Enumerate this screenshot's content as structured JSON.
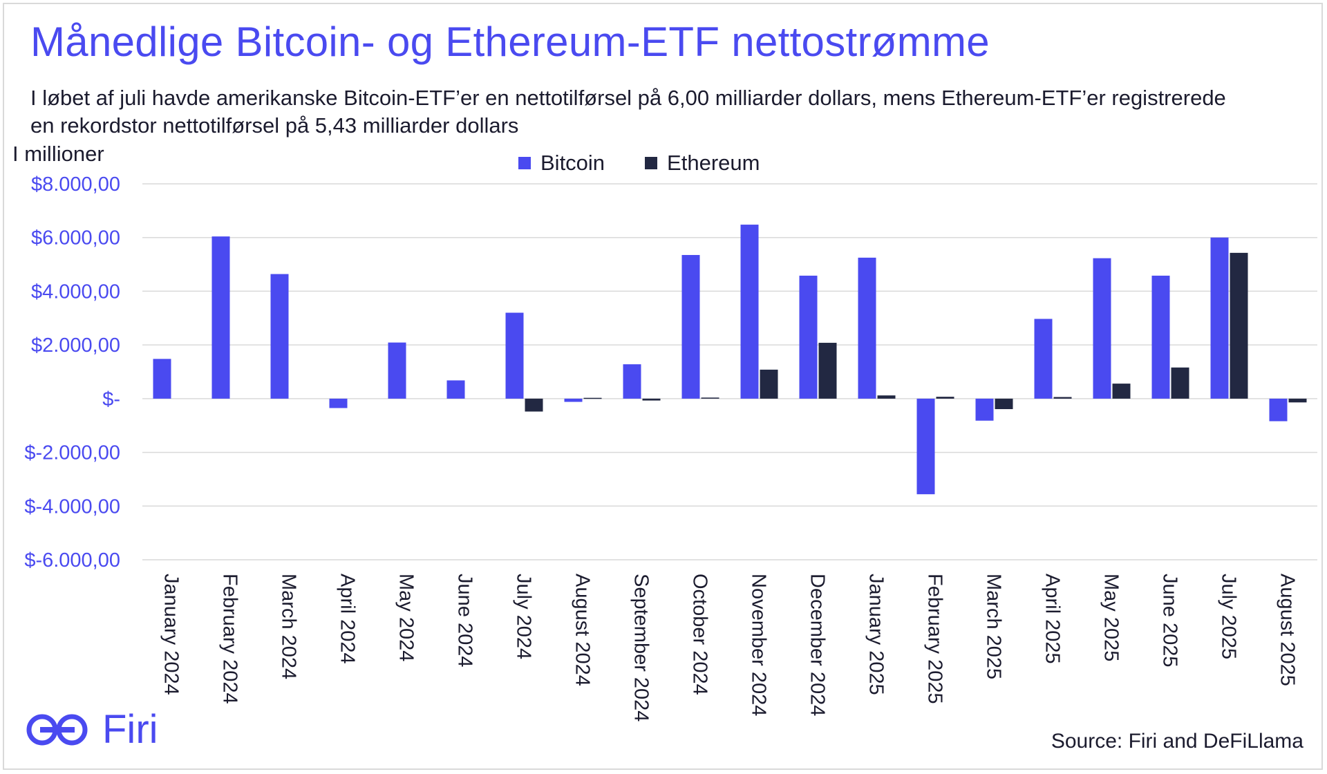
{
  "title": "Månedlige Bitcoin- og Ethereum-ETF nettostrømme",
  "subtitle": "I løbet af juli havde amerikanske Bitcoin-ETF’er en nettotilførsel på 6,00 milliarder dollars, mens Ethereum-ETF’er registrerede en rekordstor nettotilførsel på 5,43 milliarder dollars",
  "unit_label": "I millioner",
  "source": "Source: Firi and DeFiLlama",
  "logo_text": "Firi",
  "colors": {
    "bitcoin": "#4a4af0",
    "ethereum": "#222842",
    "axis_label": "#4a4af0",
    "grid": "#d9d9d9"
  },
  "chart_data": {
    "type": "bar",
    "ylim": [
      -6000,
      8000
    ],
    "yticks": [
      8000,
      6000,
      4000,
      2000,
      0,
      -2000,
      -4000,
      -6000
    ],
    "ytick_labels": [
      "$8.000,00",
      "$6.000,00",
      "$4.000,00",
      "$2.000,00",
      "$-",
      "$-2.000,00",
      "$-4.000,00",
      "$-6.000,00"
    ],
    "grid": true,
    "legend_position": "top-center",
    "categories": [
      "January 2024",
      "February 2024",
      "March 2024",
      "April 2024",
      "May 2024",
      "June 2024",
      "July 2024",
      "August 2024",
      "September 2024",
      "October 2024",
      "November 2024",
      "December 2024",
      "January 2025",
      "February 2025",
      "March 2025",
      "April 2025",
      "May 2025",
      "June 2025",
      "July 2025",
      "August 2025"
    ],
    "series": [
      {
        "name": "Bitcoin",
        "values": [
          1480,
          6040,
          4640,
          -350,
          2090,
          680,
          3200,
          -120,
          1280,
          5350,
          6480,
          4580,
          5250,
          -3560,
          -820,
          2970,
          5230,
          4580,
          6000,
          -840
        ]
      },
      {
        "name": "Ethereum",
        "values": [
          0,
          0,
          0,
          0,
          0,
          0,
          -480,
          30,
          -70,
          40,
          1080,
          2080,
          120,
          70,
          -390,
          60,
          560,
          1160,
          5430,
          -140
        ]
      }
    ]
  }
}
